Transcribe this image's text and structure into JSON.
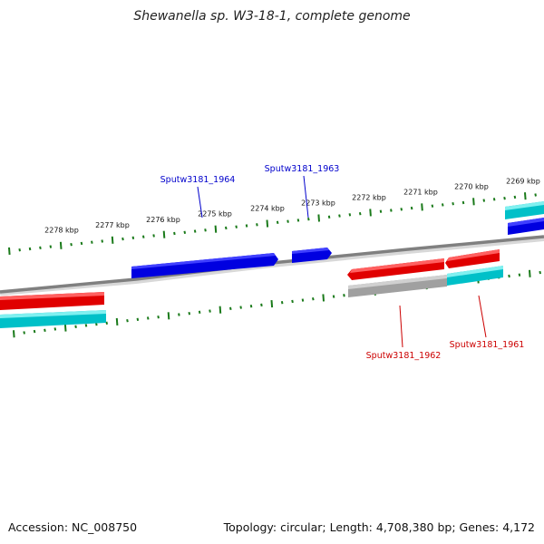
{
  "title": "Shewanella sp. W3-18-1, complete genome",
  "footer": {
    "accession": "Accession: NC_008750",
    "stats": "Topology: circular; Length: 4,708,380 bp; Genes: 4,172"
  },
  "colors": {
    "forward_gene": "#0000e0",
    "reverse_gene": "#e00000",
    "cds_track": "#00c0c8",
    "gray_track": "#a0a0a0",
    "backbone": "#808080",
    "ticks": "#1a7a1a",
    "forward_label": "#0000cc",
    "reverse_label": "#cc0000"
  },
  "scale": {
    "unit": "kbp",
    "tick_labels": [
      "2278 kbp",
      "2277 kbp",
      "2276 kbp",
      "2275 kbp",
      "2274 kbp",
      "2273 kbp",
      "2272 kbp",
      "2271 kbp",
      "2270 kbp",
      "2269 kbp"
    ]
  },
  "genes": {
    "forward": [
      {
        "label": "Sputw3181_1964"
      },
      {
        "label": "Sputw3181_1963"
      }
    ],
    "reverse": [
      {
        "label": "Sputw3181_1962"
      },
      {
        "label": "Sputw3181_1961"
      }
    ]
  }
}
